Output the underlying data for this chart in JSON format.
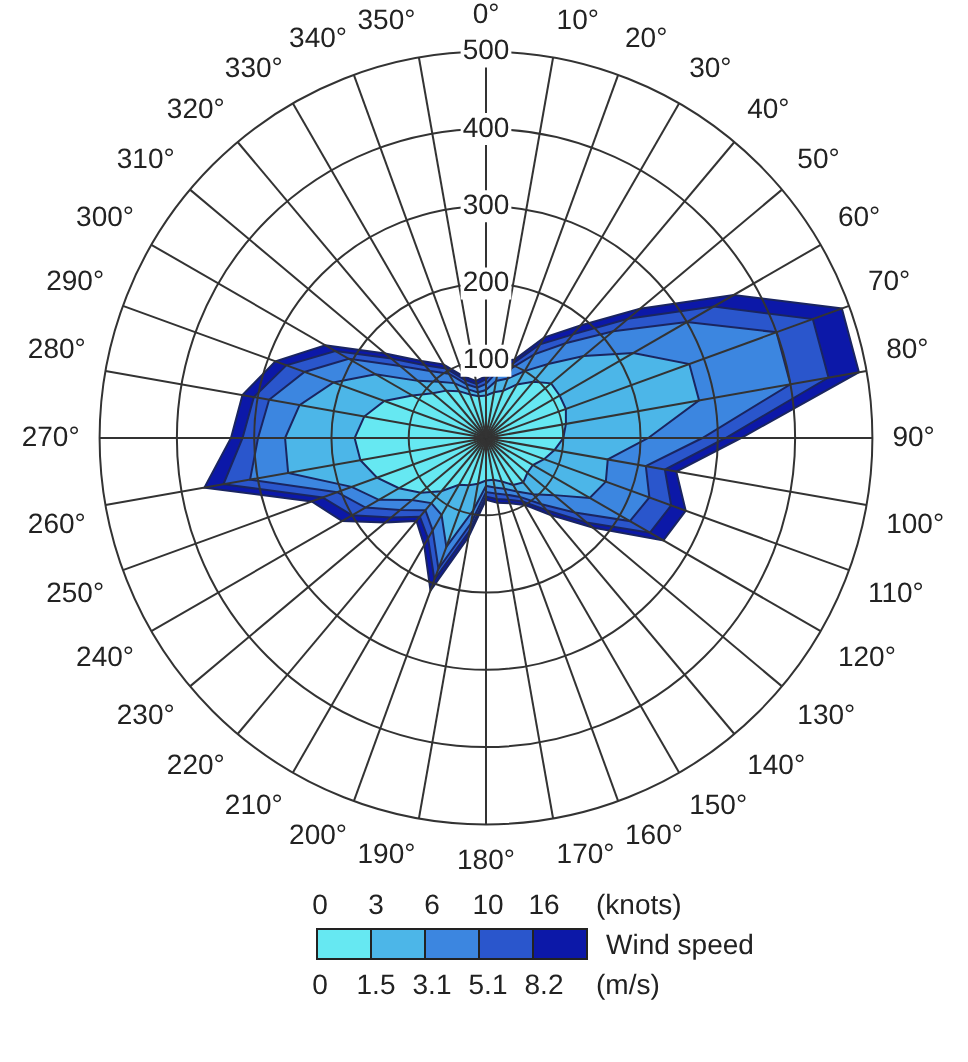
{
  "chart_data": {
    "type": "radar",
    "categories": [
      "0°",
      "10°",
      "20°",
      "30°",
      "40°",
      "50°",
      "60°",
      "70°",
      "80°",
      "90°",
      "100°",
      "110°",
      "120°",
      "130°",
      "140°",
      "150°",
      "160°",
      "170°",
      "180°",
      "190°",
      "200°",
      "210°",
      "220°",
      "230°",
      "240°",
      "250°",
      "260°",
      "270°",
      "280°",
      "290°",
      "300°",
      "310°",
      "320°",
      "330°",
      "340°",
      "350°"
    ],
    "series": [
      {
        "color": "#66e8f2",
        "values": [
          55,
          60,
          65,
          80,
          95,
          110,
          110,
          110,
          105,
          100,
          90,
          80,
          70,
          70,
          75,
          70,
          60,
          55,
          55,
          60,
          65,
          70,
          90,
          110,
          130,
          150,
          165,
          170,
          160,
          140,
          110,
          90,
          80,
          70,
          60,
          55
        ]
      },
      {
        "color": "#4cb6e8",
        "values": [
          62,
          75,
          82,
          100,
          125,
          165,
          220,
          280,
          280,
          210,
          160,
          165,
          155,
          115,
          95,
          80,
          70,
          65,
          62,
          95,
          150,
          115,
          110,
          125,
          160,
          185,
          260,
          260,
          245,
          210,
          165,
          115,
          95,
          82,
          67,
          60
        ]
      },
      {
        "color": "#3c86e0",
        "values": [
          70,
          88,
          96,
          125,
          160,
          215,
          300,
          400,
          400,
          280,
          210,
          225,
          215,
          150,
          112,
          88,
          78,
          73,
          70,
          112,
          180,
          138,
          122,
          145,
          180,
          205,
          310,
          295,
          285,
          250,
          205,
          145,
          113,
          96,
          74,
          66
        ]
      },
      {
        "color": "#2a56cc",
        "values": [
          76,
          95,
          103,
          140,
          175,
          240,
          340,
          450,
          450,
          310,
          235,
          255,
          245,
          170,
          122,
          95,
          85,
          80,
          76,
          122,
          195,
          150,
          133,
          160,
          200,
          225,
          345,
          315,
          305,
          275,
          225,
          160,
          123,
          104,
          80,
          71
        ]
      },
      {
        "color": "#0c18a8",
        "values": [
          80,
          100,
          108,
          150,
          190,
          260,
          370,
          490,
          490,
          330,
          250,
          275,
          265,
          180,
          130,
          100,
          90,
          85,
          80,
          130,
          210,
          160,
          140,
          170,
          215,
          240,
          370,
          330,
          320,
          290,
          240,
          170,
          130,
          110,
          85,
          75
        ]
      }
    ],
    "ylim": [
      0,
      500
    ],
    "yticks": [
      100,
      200,
      300,
      400,
      500
    ],
    "grid": true,
    "marker": "none",
    "legend_title": "Wind speed",
    "annotations": [
      "0",
      "3",
      "6",
      "10",
      "16",
      "(knots)",
      "0",
      "1.5",
      "3.1",
      "5.1",
      "8.2",
      "(m/s)"
    ]
  }
}
